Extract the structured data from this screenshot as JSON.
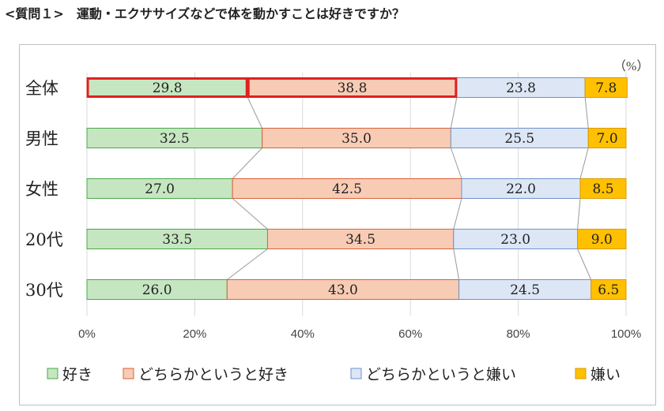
{
  "question": "<質問１>　運動・エクササイズなどで体を動かすことは好きですか？",
  "chart_data": {
    "type": "bar",
    "orientation": "horizontal",
    "stacked": "100%",
    "unit_label": "（%）",
    "categories": [
      "全体",
      "男性",
      "女性",
      "20代",
      "30代"
    ],
    "series": [
      {
        "name": "好き",
        "color": "#c6e6c1",
        "border": "#4aa84a",
        "values": [
          29.8,
          32.5,
          27.0,
          33.5,
          26.0
        ]
      },
      {
        "name": "どちらかというと好き",
        "color": "#f8cbb4",
        "border": "#d9623b",
        "values": [
          38.8,
          35.0,
          42.5,
          34.5,
          43.0
        ]
      },
      {
        "name": "どちらかというと嫌い",
        "color": "#dce6f5",
        "border": "#6f93c9",
        "values": [
          23.8,
          25.5,
          22.0,
          23.0,
          24.5
        ]
      },
      {
        "name": "嫌い",
        "color": "#ffc000",
        "border": "#d99a00",
        "values": [
          7.8,
          7.0,
          8.5,
          9.0,
          6.5
        ]
      }
    ],
    "xlim": [
      0,
      100
    ],
    "xticks": [
      "0%",
      "20%",
      "40%",
      "60%",
      "80%",
      "100%"
    ],
    "highlight_category": "全体",
    "highlight_color": "#e02020",
    "connector_lines": true,
    "grid": "vertical",
    "legend_position": "bottom"
  }
}
